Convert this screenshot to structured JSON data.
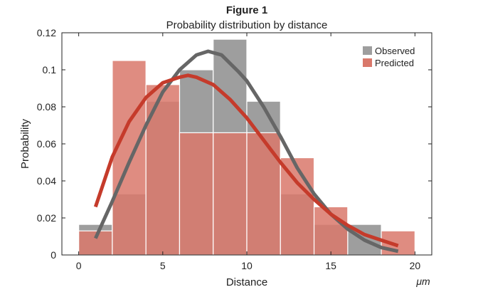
{
  "chart_data": {
    "type": "bar",
    "figure_label": "Figure 1",
    "title": "Probability distribution by distance",
    "xlabel": "Distance",
    "ylabel": "Probability",
    "x_unit": "μm",
    "xlim": [
      -1,
      21
    ],
    "ylim": [
      0,
      0.12
    ],
    "xticks": [
      0,
      5,
      10,
      15,
      20
    ],
    "yticks": [
      0,
      0.02,
      0.04,
      0.06,
      0.08,
      0.1,
      0.12
    ],
    "ytick_labels": [
      "0",
      "0.02",
      "0.04",
      "0.06",
      "0.08",
      "0.1",
      "0.12"
    ],
    "bin_edges": [
      0,
      2,
      4,
      6,
      8,
      10,
      12,
      14,
      16,
      18,
      20
    ],
    "legend_position": "top-right",
    "series": [
      {
        "name": "Observed",
        "color": "#9e9e9e",
        "values": [
          0.0165,
          0.033,
          0.083,
          0.1,
          0.1165,
          0.083,
          0.033,
          0.0165,
          0.0165,
          0
        ]
      },
      {
        "name": "Predicted",
        "color": "#d9786b",
        "values": [
          0.013,
          0.105,
          0.092,
          0.066,
          0.066,
          0.066,
          0.0525,
          0.026,
          0,
          0.013
        ]
      }
    ],
    "curves": [
      {
        "name": "Observed fit",
        "color": "#666666",
        "x": [
          1,
          2,
          3,
          4,
          5,
          6,
          7,
          7.7,
          8.5,
          9.5,
          10,
          11,
          12,
          13,
          14,
          15,
          16,
          17,
          18,
          19
        ],
        "y": [
          0.009,
          0.029,
          0.05,
          0.07,
          0.088,
          0.1,
          0.108,
          0.11,
          0.108,
          0.099,
          0.094,
          0.08,
          0.064,
          0.047,
          0.033,
          0.022,
          0.014,
          0.008,
          0.004,
          0.002
        ]
      },
      {
        "name": "Predicted fit",
        "color": "#c53b2b",
        "x": [
          1,
          2,
          3,
          4,
          5,
          6,
          6.5,
          7,
          8,
          9,
          10,
          11,
          12,
          13,
          14,
          15,
          16,
          17,
          18,
          19
        ],
        "y": [
          0.026,
          0.053,
          0.072,
          0.085,
          0.093,
          0.096,
          0.097,
          0.096,
          0.092,
          0.084,
          0.074,
          0.062,
          0.05,
          0.039,
          0.03,
          0.022,
          0.016,
          0.011,
          0.008,
          0.005
        ]
      }
    ]
  }
}
